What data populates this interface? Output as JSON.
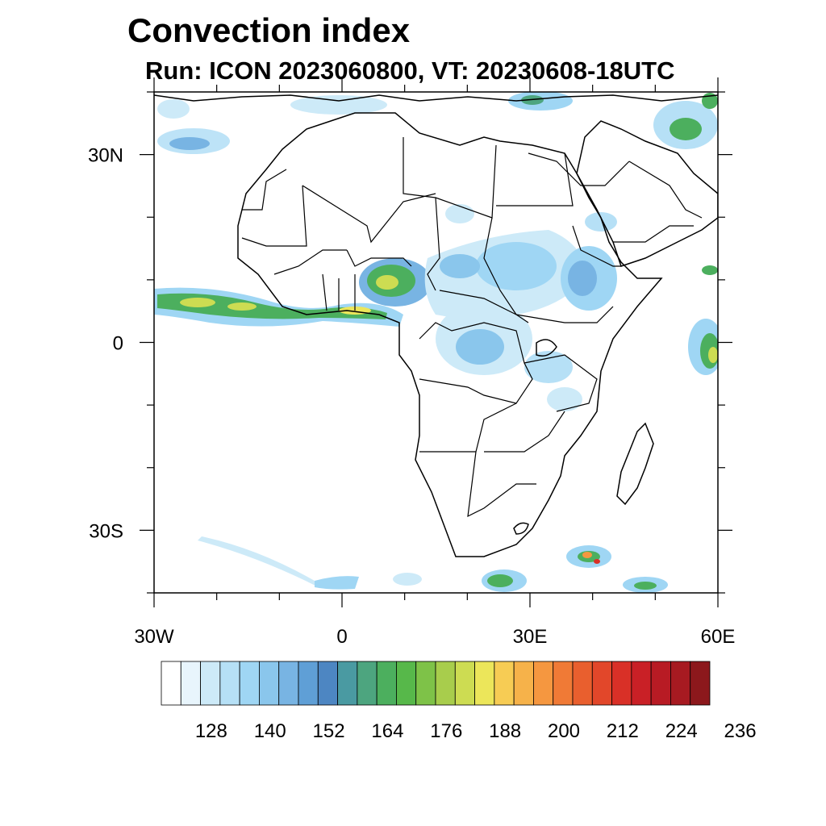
{
  "title": "Convection index",
  "subtitle": "Run: ICON 2023060800,  VT: 20230608-18UTC",
  "map": {
    "lon_range": [
      -30,
      60
    ],
    "lat_range": [
      -40,
      40
    ],
    "lat_ticks": [
      {
        "value": 30,
        "label": "30N"
      },
      {
        "value": 0,
        "label": "0"
      },
      {
        "value": -30,
        "label": "30S"
      }
    ],
    "lon_ticks": [
      {
        "value": -30,
        "label": "30W"
      },
      {
        "value": 0,
        "label": "0"
      },
      {
        "value": 30,
        "label": "30E"
      },
      {
        "value": 60,
        "label": "60E"
      }
    ]
  },
  "colorbar": {
    "colors": [
      "#ffffff",
      "#e8f5fc",
      "#cdeaf8",
      "#b6e0f6",
      "#9fd6f4",
      "#8ac6ec",
      "#78b4e3",
      "#5f9fd6",
      "#4d86c2",
      "#4a9aa2",
      "#4da57f",
      "#4caf5e",
      "#57b84a",
      "#7ec248",
      "#a8cd4c",
      "#cddc52",
      "#ece65a",
      "#f7cc54",
      "#f6b24a",
      "#f59740",
      "#f07a36",
      "#e95f2e",
      "#e2472a",
      "#d93027",
      "#c92026",
      "#b81b24",
      "#a71a21",
      "#8c181c"
    ],
    "labels": [
      "128",
      "140",
      "152",
      "164",
      "176",
      "188",
      "200",
      "212",
      "224",
      "236"
    ]
  },
  "rain_colors": {
    "light": "#b6e0f6",
    "mid": "#78b4e3",
    "dark": "#5f9fd6",
    "green": "#4caf5e",
    "yellow": "#cddc52",
    "orange": "#f59740",
    "red": "#d93027"
  }
}
